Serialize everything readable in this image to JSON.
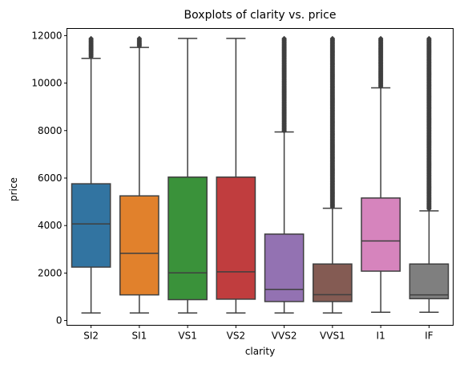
{
  "chart_data": {
    "type": "boxplot",
    "title": "Boxplots of clarity vs. price",
    "xlabel": "clarity",
    "ylabel": "price",
    "ylim": [
      -200,
      12300
    ],
    "yticks": [
      0,
      2000,
      4000,
      6000,
      8000,
      10000,
      12000
    ],
    "ytick_labels": [
      "0",
      "2000",
      "4000",
      "6000",
      "8000",
      "10000",
      "12000"
    ],
    "grid": false,
    "legend": "none",
    "box_stroke_color": "#3f3f3f",
    "categories": [
      "SI2",
      "SI1",
      "VS1",
      "VS2",
      "VVS2",
      "VVS1",
      "I1",
      "IF"
    ],
    "series": [
      {
        "category": "SI2",
        "color": "#3274a1",
        "whisker_low": 320,
        "q1": 2250,
        "median": 4070,
        "q3": 5760,
        "whisker_high": 11040,
        "outliers_range": [
          11100,
          11880
        ]
      },
      {
        "category": "SI1",
        "color": "#e1812c",
        "whisker_low": 320,
        "q1": 1080,
        "median": 2830,
        "q3": 5250,
        "whisker_high": 11500,
        "outliers_range": [
          11550,
          11880
        ]
      },
      {
        "category": "VS1",
        "color": "#3a923a",
        "whisker_low": 320,
        "q1": 880,
        "median": 2010,
        "q3": 6040,
        "whisker_high": 11880,
        "outliers_range": null
      },
      {
        "category": "VS2",
        "color": "#c03d3e",
        "whisker_low": 320,
        "q1": 900,
        "median": 2050,
        "q3": 6040,
        "whisker_high": 11880,
        "outliers_range": null
      },
      {
        "category": "VVS2",
        "color": "#9372b2",
        "whisker_low": 320,
        "q1": 800,
        "median": 1310,
        "q3": 3640,
        "whisker_high": 7940,
        "outliers_range": [
          7980,
          11880
        ]
      },
      {
        "category": "VVS1",
        "color": "#845b53",
        "whisker_low": 320,
        "q1": 800,
        "median": 1090,
        "q3": 2380,
        "whisker_high": 4730,
        "outliers_range": [
          4780,
          11880
        ]
      },
      {
        "category": "I1",
        "color": "#d684bd",
        "whisker_low": 350,
        "q1": 2080,
        "median": 3350,
        "q3": 5160,
        "whisker_high": 9800,
        "outliers_range": [
          9850,
          11880
        ]
      },
      {
        "category": "IF",
        "color": "#7f7f7f",
        "whisker_low": 350,
        "q1": 920,
        "median": 1080,
        "q3": 2380,
        "whisker_high": 4620,
        "outliers_range": [
          4700,
          11880
        ]
      }
    ]
  }
}
